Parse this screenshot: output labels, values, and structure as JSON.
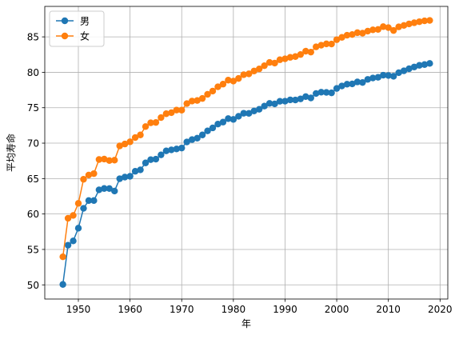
{
  "chart_data": {
    "type": "line",
    "xlabel": "年",
    "ylabel": "平均寿命",
    "xlim": [
      1943.5,
      2021.5
    ],
    "ylim": [
      48.0,
      89.3
    ],
    "xticks": [
      1950,
      1960,
      1970,
      1980,
      1990,
      2000,
      2010,
      2020
    ],
    "yticks": [
      50,
      55,
      60,
      65,
      70,
      75,
      80,
      85
    ],
    "grid": true,
    "legend_position": "top-left",
    "x": [
      1947,
      1948,
      1949,
      1950,
      1951,
      1952,
      1953,
      1954,
      1955,
      1956,
      1957,
      1958,
      1959,
      1960,
      1961,
      1962,
      1963,
      1964,
      1965,
      1966,
      1967,
      1968,
      1969,
      1970,
      1971,
      1972,
      1973,
      1974,
      1975,
      1976,
      1977,
      1978,
      1979,
      1980,
      1981,
      1982,
      1983,
      1984,
      1985,
      1986,
      1987,
      1988,
      1989,
      1990,
      1991,
      1992,
      1993,
      1994,
      1995,
      1996,
      1997,
      1998,
      1999,
      2000,
      2001,
      2002,
      2003,
      2004,
      2005,
      2006,
      2007,
      2008,
      2009,
      2010,
      2011,
      2012,
      2013,
      2014,
      2015,
      2016,
      2017,
      2018
    ],
    "series": [
      {
        "name": "男",
        "color": "#1f77b4",
        "values": [
          50.06,
          55.6,
          56.2,
          58.0,
          60.8,
          61.9,
          61.9,
          63.41,
          63.6,
          63.59,
          63.24,
          64.98,
          65.21,
          65.32,
          66.03,
          66.23,
          67.21,
          67.67,
          67.74,
          68.35,
          68.91,
          69.05,
          69.18,
          69.31,
          70.17,
          70.5,
          70.7,
          71.16,
          71.73,
          72.15,
          72.69,
          72.97,
          73.46,
          73.35,
          73.79,
          74.22,
          74.2,
          74.54,
          74.78,
          75.23,
          75.61,
          75.54,
          75.91,
          75.92,
          76.11,
          76.09,
          76.25,
          76.57,
          76.38,
          77.01,
          77.19,
          77.16,
          77.1,
          77.72,
          78.07,
          78.32,
          78.36,
          78.64,
          78.56,
          79.0,
          79.19,
          79.29,
          79.59,
          79.55,
          79.44,
          79.94,
          80.21,
          80.5,
          80.75,
          80.98,
          81.09,
          81.25
        ]
      },
      {
        "name": "女",
        "color": "#ff7f0e",
        "values": [
          53.96,
          59.4,
          59.8,
          61.5,
          64.9,
          65.5,
          65.7,
          67.69,
          67.75,
          67.54,
          67.6,
          69.61,
          69.88,
          70.19,
          70.79,
          71.16,
          72.34,
          72.87,
          72.92,
          73.61,
          74.15,
          74.3,
          74.67,
          74.66,
          75.58,
          75.94,
          76.02,
          76.31,
          76.89,
          77.35,
          77.95,
          78.33,
          78.89,
          78.76,
          79.13,
          79.66,
          79.78,
          80.18,
          80.48,
          80.93,
          81.39,
          81.3,
          81.77,
          81.9,
          82.11,
          82.22,
          82.51,
          82.98,
          82.85,
          83.59,
          83.82,
          84.01,
          83.99,
          84.6,
          84.93,
          85.23,
          85.33,
          85.59,
          85.52,
          85.81,
          85.99,
          86.05,
          86.44,
          86.3,
          85.9,
          86.41,
          86.61,
          86.83,
          86.99,
          87.14,
          87.26,
          87.32
        ]
      }
    ]
  }
}
